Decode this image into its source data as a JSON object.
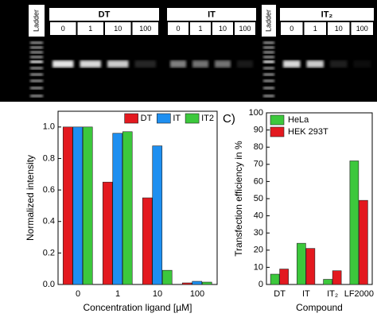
{
  "gel": {
    "panels": [
      {
        "ladder": "Ladder",
        "groups": [
          {
            "title": "DT",
            "lanes": [
              "0",
              "1",
              "10",
              "100"
            ]
          },
          {
            "title": "IT",
            "lanes": [
              "0",
              "1",
              "10",
              "100"
            ]
          }
        ]
      },
      {
        "ladder": "Ladder",
        "groups": [
          {
            "title": "IT₂",
            "lanes": [
              "0",
              "1",
              "10",
              "100"
            ]
          }
        ]
      }
    ]
  },
  "chart_data": [
    {
      "type": "bar",
      "ylabel": "Normalized intensity",
      "xlabel": "Concentration ligand [µM]",
      "categories": [
        "0",
        "1",
        "10",
        "100"
      ],
      "series": [
        {
          "name": "DT",
          "color": "#e3191f",
          "values": [
            1.0,
            0.65,
            0.55,
            0.01
          ]
        },
        {
          "name": "IT",
          "color": "#1e8ff0",
          "values": [
            1.0,
            0.96,
            0.88,
            0.02
          ]
        },
        {
          "name": "IT2",
          "color": "#3cc83c",
          "values": [
            1.0,
            0.97,
            0.09,
            0.015
          ]
        }
      ],
      "ylim": [
        0,
        1.1
      ],
      "yticks": [
        {
          "value": 0,
          "label": "0.0"
        },
        0.2,
        0.4,
        0.6,
        0.8,
        {
          "value": 1,
          "label": "1.0"
        }
      ],
      "legend": "top-right"
    },
    {
      "type": "bar",
      "panel_label": "C)",
      "ylabel": "Transfection efficiency in %",
      "xlabel": "Compound",
      "categories": [
        "DT",
        "IT",
        "IT₂",
        "LF2000"
      ],
      "series": [
        {
          "name": "HeLa",
          "color": "#3cc83c",
          "values": [
            6,
            24,
            3,
            72
          ]
        },
        {
          "name": "HEK 293T",
          "color": "#e3191f",
          "values": [
            9,
            21,
            8,
            49
          ]
        }
      ],
      "ylim": [
        0,
        100
      ],
      "yticks": [
        0,
        10,
        20,
        30,
        40,
        50,
        60,
        70,
        80,
        90,
        100
      ],
      "legend": "top-left"
    }
  ]
}
